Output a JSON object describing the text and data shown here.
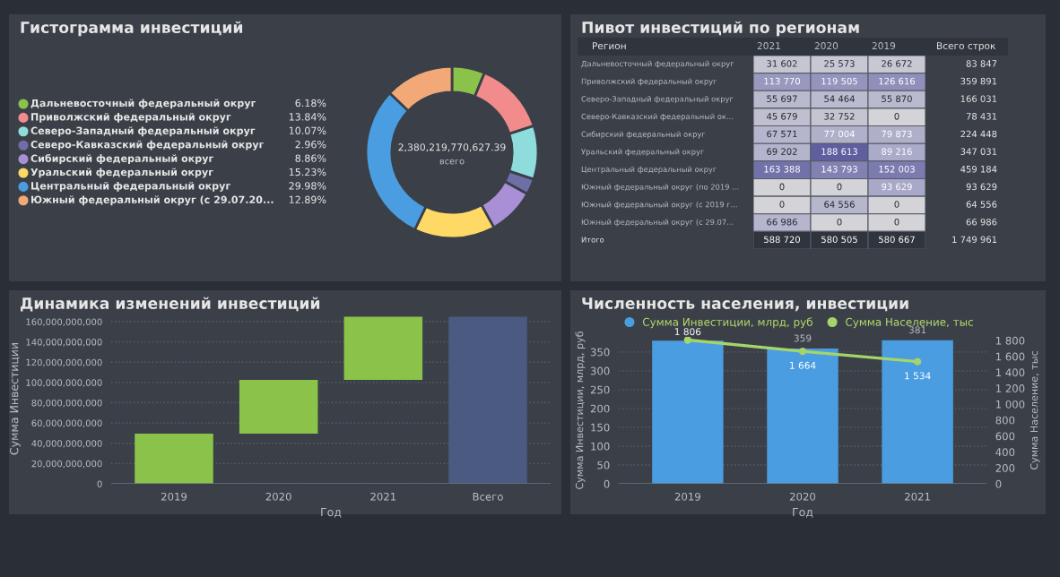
{
  "chart_data": [
    {
      "type": "donut",
      "title": "Гистограмма инвестиций",
      "categories": [
        "Дальневосточный федеральный округ",
        "Приволжский федеральный округ",
        "Северо-Западный федеральный округ",
        "Северо-Кавказский федеральный округ",
        "Сибирский федеральный округ",
        "Уральский федеральный округ",
        "Центральный федеральный округ",
        "Южный федеральный округ (с 29.07.20..."
      ],
      "values": [
        6.18,
        13.84,
        10.07,
        2.96,
        8.86,
        15.23,
        29.98,
        12.89
      ],
      "value_labels": [
        "6.18%",
        "13.84%",
        "10.07%",
        "2.96%",
        "8.86%",
        "15.23%",
        "29.98%",
        "12.89%"
      ],
      "colors": [
        "#8bc34a",
        "#f28b8b",
        "#8fdcdc",
        "#6f6fa8",
        "#a88fd6",
        "#ffd966",
        "#4a9de0",
        "#f2a977"
      ],
      "legend": "left",
      "annotations": [
        "2,380,219,770,627.39",
        "всего"
      ]
    },
    {
      "type": "heatmap",
      "title": "Пивот инвестиций по регионам",
      "ylabel": "Регион",
      "x2label": "Всего строк",
      "categories": [
        "2021",
        "2020",
        "2019"
      ],
      "y_categories": [
        "Дальневосточный федеральный округ",
        "Приволжский федеральный округ",
        "Северо-Западный федеральный округ",
        "Северо-Кавказский федеральный ок...",
        "Сибирский федеральный округ",
        "Уральский федеральный округ",
        "Центральный федеральный округ",
        "Южный федеральный округ (по 2019 ...",
        "Южный федеральный округ (с 2019 г...",
        "Южный федеральный округ (с 29.07...",
        "Итого"
      ],
      "y2_categories": [
        "83 847",
        "359 891",
        "166 031",
        "78 431",
        "224 448",
        "347 031",
        "459 184",
        "93 629",
        "64 556",
        "66 986",
        "1 749 961"
      ],
      "cells": [
        [
          31602,
          25573,
          26672
        ],
        [
          113770,
          119505,
          126616
        ],
        [
          55697,
          54464,
          55870
        ],
        [
          45679,
          32752,
          0
        ],
        [
          67571,
          77004,
          79873
        ],
        [
          69202,
          188613,
          89216
        ],
        [
          163388,
          143793,
          152003
        ],
        [
          0,
          0,
          93629
        ],
        [
          0,
          64556,
          0
        ],
        [
          66986,
          0,
          0
        ],
        [
          588720,
          580505,
          580667
        ]
      ],
      "cell_labels": [
        [
          "31 602",
          "25 573",
          "26 672"
        ],
        [
          "113 770",
          "119 505",
          "126 616"
        ],
        [
          "55 697",
          "54 464",
          "55 870"
        ],
        [
          "45 679",
          "32 752",
          "0"
        ],
        [
          "67 571",
          "77 004",
          "79 873"
        ],
        [
          "69 202",
          "188 613",
          "89 216"
        ],
        [
          "163 388",
          "143 793",
          "152 003"
        ],
        [
          "0",
          "0",
          "93 629"
        ],
        [
          "0",
          "64 556",
          "0"
        ],
        [
          "66 986",
          "0",
          "0"
        ],
        [
          "588 720",
          "580 505",
          "580 667"
        ]
      ]
    },
    {
      "type": "bar",
      "title": "Динамика изменений инвестиций",
      "xlabel": "Год",
      "ylabel": "Сумма Инвестиции",
      "categories": [
        "2019",
        "2020",
        "2021",
        "Всего"
      ],
      "base": [
        0,
        49500000000,
        102500000000,
        0
      ],
      "values": [
        49500000000,
        53000000000,
        62500000000,
        165000000000
      ],
      "colors": [
        "#8bc34a",
        "#8bc34a",
        "#8bc34a",
        "#4a5a80"
      ],
      "ylim": [
        0,
        168000000000
      ],
      "yticks": [
        {
          "value": 0,
          "label": "0"
        },
        {
          "value": 20000000000,
          "label": "20,000,000,000"
        },
        {
          "value": 40000000000,
          "label": "40,000,000,000"
        },
        {
          "value": 60000000000,
          "label": "60,000,000,000"
        },
        {
          "value": 80000000000,
          "label": "80,000,000,000"
        },
        {
          "value": 100000000000,
          "label": "100,000,000,000"
        },
        {
          "value": 120000000000,
          "label": "120,000,000,000"
        },
        {
          "value": 140000000000,
          "label": "140,000,000,000"
        },
        {
          "value": 160000000000,
          "label": "160,000,000,000"
        }
      ],
      "grid": "y"
    },
    {
      "type": "bar",
      "title": "Численность населения, инвестиции",
      "xlabel": "Год",
      "ylabel": "Сумма Инвестиции, млрд, руб",
      "y2label": "Сумма Население, тыс",
      "categories": [
        "2019",
        "2020",
        "2021"
      ],
      "series": [
        {
          "name": "Сумма Инвестиции, млрд, руб",
          "color": "#4a9de0",
          "values": [
            380,
            359,
            381
          ],
          "value_labels": [
            null,
            "359",
            "381"
          ]
        },
        {
          "name": "Сумма Население, тыс",
          "type": "line",
          "axis": "y2",
          "color": "#a5d46a",
          "marker": "circle",
          "values": [
            1806,
            1664,
            1534
          ],
          "value_labels": [
            "1 806",
            "1 664",
            "1 534"
          ]
        }
      ],
      "ylim": [
        0,
        390
      ],
      "yticks": [
        0,
        50,
        100,
        150,
        200,
        250,
        300,
        350
      ],
      "y2lim": [
        0,
        1845
      ],
      "y2ticks": [
        0,
        {
          "value": 200,
          "label": "200"
        },
        {
          "value": 400,
          "label": "400"
        },
        {
          "value": 600,
          "label": "600"
        },
        {
          "value": 800,
          "label": "800"
        },
        {
          "value": 1000,
          "label": "1 000"
        },
        {
          "value": 1200,
          "label": "1 200"
        },
        {
          "value": 1400,
          "label": "1 400"
        },
        {
          "value": 1600,
          "label": "1 600"
        },
        {
          "value": 1800,
          "label": "1 800"
        }
      ],
      "grid": "y",
      "legend": "top left"
    }
  ]
}
